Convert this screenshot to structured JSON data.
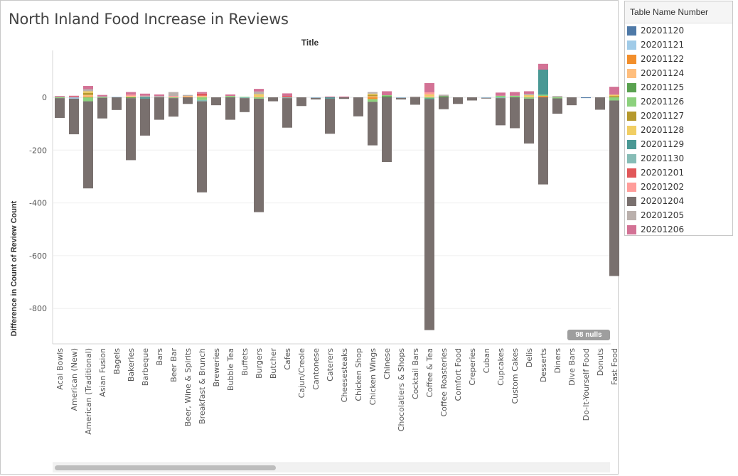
{
  "chart_data": {
    "type": "bar",
    "title": "North Inland Food Increase in Reviews",
    "subtitle": "Title",
    "ylabel": "Difference in Count of Review Count",
    "ylim": [
      -1000,
      200
    ],
    "yticks": [
      0,
      -200,
      -400,
      -600,
      -800
    ],
    "grid": true,
    "legend_position": "right",
    "nulls_label": "98 nulls",
    "legend_title": "Table Name Number",
    "series_colors": {
      "20201120": "#4e79a7",
      "20201121": "#a0cbe8",
      "20201122": "#f28e2b",
      "20201124": "#ffbe7d",
      "20201125": "#59a14f",
      "20201126": "#8cd17d",
      "20201127": "#b6992d",
      "20201128": "#f1ce63",
      "20201129": "#499894",
      "20201130": "#86bcb6",
      "20201201": "#e15759",
      "20201202": "#ff9d9a",
      "20201204": "#79706e",
      "20201205": "#bab0ac",
      "20201206": "#d37295"
    },
    "categories": [
      {
        "label": "Acai Bowls",
        "values": {
          "20201204": -75,
          "20201126": -3,
          "20201205": 3,
          "20201206": 2
        }
      },
      {
        "label": "American (New)",
        "values": {
          "20201204": -135,
          "20201121": -5,
          "20201201": 3,
          "20201206": 3
        }
      },
      {
        "label": "American (Traditional)",
        "values": {
          "20201204": -330,
          "20201126": -15,
          "20201122": 3,
          "20201206": 12,
          "20201205": 8,
          "20201127": 8,
          "20201128": 6,
          "20201124": 6
        }
      },
      {
        "label": "Asian Fusion",
        "values": {
          "20201204": -78,
          "20201126": -2,
          "20201206": 5,
          "20201205": 4
        }
      },
      {
        "label": "Bagels",
        "values": {
          "20201204": -48,
          "20201121": 2
        }
      },
      {
        "label": "Bakeries",
        "values": {
          "20201204": -235,
          "20201125": -3,
          "20201206": 10,
          "20201202": 5,
          "20201124": 5
        }
      },
      {
        "label": "Barbeque",
        "values": {
          "20201204": -140,
          "20201129": -5,
          "20201206": 8,
          "20201205": 6
        }
      },
      {
        "label": "Bars",
        "values": {
          "20201204": -85,
          "20201206": 6,
          "20201205": 5
        }
      },
      {
        "label": "Beer Bar",
        "values": {
          "20201204": -70,
          "20201126": -3,
          "20201205": 15,
          "20201202": 5
        }
      },
      {
        "label": "Beer, Wine & Spirits",
        "values": {
          "20201204": -25,
          "20201205": 4,
          "20201124": 3,
          "20201122": 2
        }
      },
      {
        "label": "Breakfast & Brunch",
        "values": {
          "20201204": -345,
          "20201126": -10,
          "20201130": -5,
          "20201201": 8,
          "20201206": 6,
          "20201124": 6
        }
      },
      {
        "label": "Breweries",
        "values": {
          "20201204": -30
        }
      },
      {
        "label": "Bubble Tea",
        "values": {
          "20201204": -85,
          "20201206": 6,
          "20201126": 5
        }
      },
      {
        "label": "Buffets",
        "values": {
          "20201204": -53,
          "20201130": -3,
          "20201126": 2
        }
      },
      {
        "label": "Burgers",
        "values": {
          "20201204": -430,
          "20201126": -5,
          "20201206": 10,
          "20201205": 10,
          "20201128": 8,
          "20201124": 4
        }
      },
      {
        "label": "Butcher",
        "values": {
          "20201204": -15
        }
      },
      {
        "label": "Cafes",
        "values": {
          "20201204": -112,
          "20201130": -3,
          "20201206": 10,
          "20201201": 5
        }
      },
      {
        "label": "Cajun/Creole",
        "values": {
          "20201204": -33
        }
      },
      {
        "label": "Cantonese",
        "values": {
          "20201204": -6,
          "20201121": -2
        }
      },
      {
        "label": "Caterers",
        "values": {
          "20201204": -133,
          "20201129": -5,
          "20201206": 3
        }
      },
      {
        "label": "Cheesesteaks",
        "values": {
          "20201204": -6,
          "20201206": 3
        }
      },
      {
        "label": "Chicken Shop",
        "values": {
          "20201204": -72
        }
      },
      {
        "label": "Chicken Wings",
        "values": {
          "20201204": -165,
          "20201126": -10,
          "20201122": -7,
          "20201128": 4,
          "20201205": 6,
          "20201127": 6,
          "20201124": 4
        }
      },
      {
        "label": "Chinese",
        "values": {
          "20201204": -245,
          "20201126": 3,
          "20201206": 15,
          "20201125": 5
        }
      },
      {
        "label": "Chocolatiers & Shops",
        "values": {
          "20201204": -6,
          "20201121": -2
        }
      },
      {
        "label": "Cocktail Bars",
        "values": {
          "20201204": -28,
          "20201205": 3
        }
      },
      {
        "label": "Coffee & Tea",
        "values": {
          "20201204": -875,
          "20201126": -4,
          "20201129": -3,
          "20201206": 35,
          "20201202": 8,
          "20201128": 6,
          "20201124": 5
        }
      },
      {
        "label": "Coffee Roasteries",
        "values": {
          "20201204": -45,
          "20201205": 6,
          "20201125": 4
        }
      },
      {
        "label": "Comfort Food",
        "values": {
          "20201204": -25
        }
      },
      {
        "label": "Creperies",
        "values": {
          "20201204": -12
        }
      },
      {
        "label": "Cuban",
        "values": {
          "20201121": -2,
          "20201204": -1
        }
      },
      {
        "label": "Cupcakes",
        "values": {
          "20201204": -103,
          "20201130": -3,
          "20201206": 12,
          "20201126": 6
        }
      },
      {
        "label": "Custom Cakes",
        "values": {
          "20201204": -117,
          "20201126": 6,
          "20201206": 14
        }
      },
      {
        "label": "Delis",
        "values": {
          "20201204": -170,
          "20201126": -5,
          "20201206": 10,
          "20201205": 5,
          "20201128": 5,
          "20201124": 3
        }
      },
      {
        "label": "Desserts",
        "values": {
          "20201204": -330,
          "20201206": 22,
          "20201122": 5,
          "20201129": 95,
          "20201126": 5
        }
      },
      {
        "label": "Diners",
        "values": {
          "20201204": -58,
          "20201126": -4,
          "20201205": 5
        }
      },
      {
        "label": "Dive Bars",
        "values": {
          "20201204": -30
        }
      },
      {
        "label": "Do-It-Yourself Food",
        "values": {
          "20201120": -3
        }
      },
      {
        "label": "Donuts",
        "values": {
          "20201204": -47
        }
      },
      {
        "label": "Fast Food",
        "values": {
          "20201204": -665,
          "20201126": -12,
          "20201206": 30,
          "20201127": 5,
          "20201128": 5
        }
      }
    ]
  },
  "legend": {
    "title": "Table Name Number",
    "items": [
      "20201120",
      "20201121",
      "20201122",
      "20201124",
      "20201125",
      "20201126",
      "20201127",
      "20201128",
      "20201129",
      "20201130",
      "20201201",
      "20201202",
      "20201204",
      "20201205",
      "20201206"
    ]
  }
}
